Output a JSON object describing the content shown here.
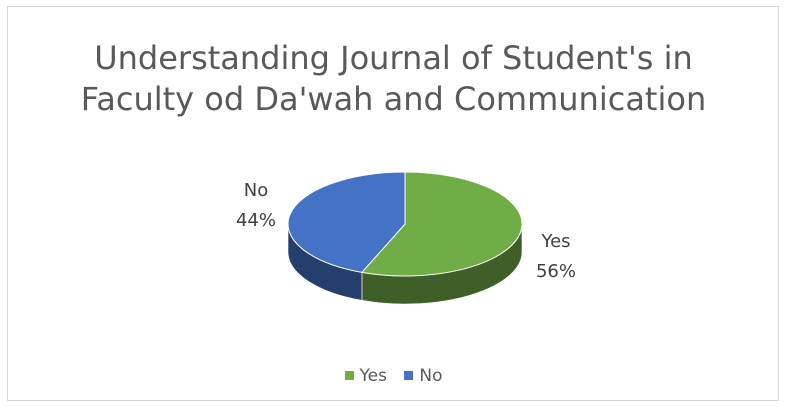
{
  "chart_data": {
    "type": "pie",
    "title_lines": [
      "Understanding Journal of Student's in",
      "Faculty od Da'wah and Communication"
    ],
    "categories": [
      "Yes",
      "No"
    ],
    "values": [
      56,
      44
    ],
    "data_labels": [
      {
        "category": "Yes",
        "percent": "56%"
      },
      {
        "category": "No",
        "percent": "44%"
      }
    ],
    "colors": {
      "Yes": "#70ad47",
      "No": "#4472c4"
    },
    "legend_position": "bottom",
    "style": "3d"
  }
}
